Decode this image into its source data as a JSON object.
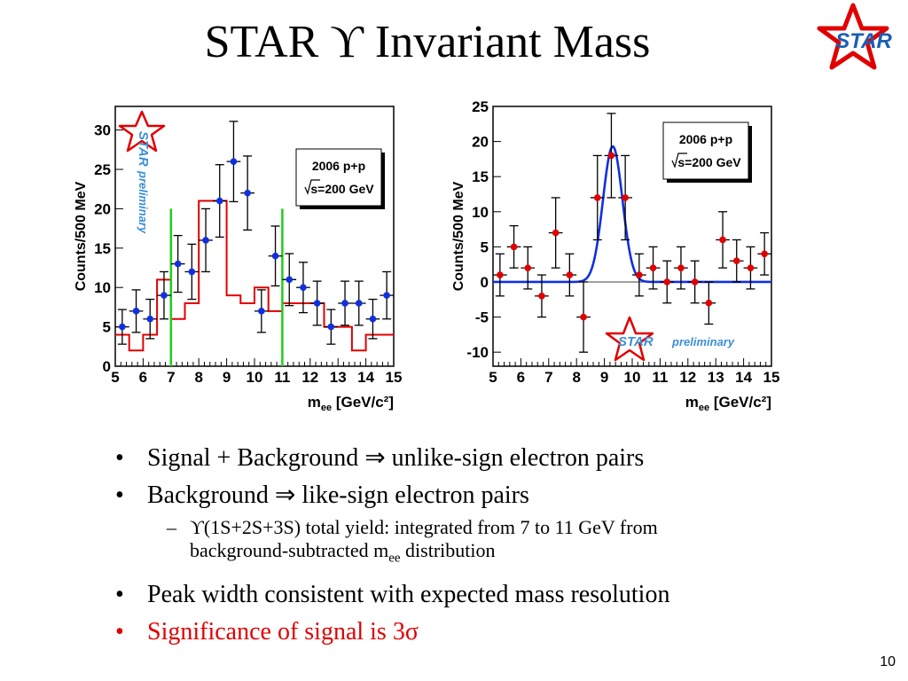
{
  "slide": {
    "title": "STAR ϒ Invariant Mass",
    "logo_text": "STAR",
    "page_number": "10"
  },
  "colors": {
    "red": "#e00000",
    "blue": "#1030e0",
    "green": "#22cc22",
    "logo_blue": "#1a5fb4",
    "wm_blue": "#3b8fd6"
  },
  "chart_data": [
    {
      "type": "scatter",
      "xlabel_main": "m",
      "xlabel_sub": "ee",
      "xlabel_unit": " [GeV/c²]",
      "ylabel": "Counts/500 MeV",
      "xlim": [
        5,
        15
      ],
      "ylim": [
        0,
        33
      ],
      "xticks": [
        "5",
        "6",
        "7",
        "8",
        "9",
        "10",
        "11",
        "12",
        "13",
        "14",
        "15"
      ],
      "yticks": [
        "0",
        "5",
        "10",
        "15",
        "20",
        "25",
        "30"
      ],
      "info_line1": "2006 p+p",
      "info_line2": "s=200 GeV",
      "watermark_star": "STAR",
      "watermark_text": "preliminary",
      "series": [
        {
          "style": "blue-points",
          "points": [
            [
              5.25,
              5
            ],
            [
              5.75,
              7
            ],
            [
              6.25,
              6
            ],
            [
              6.75,
              9
            ],
            [
              7.25,
              13
            ],
            [
              7.75,
              12
            ],
            [
              8.25,
              16
            ],
            [
              8.75,
              21
            ],
            [
              9.25,
              26
            ],
            [
              9.75,
              22
            ],
            [
              10.25,
              7
            ],
            [
              10.75,
              14
            ],
            [
              11.25,
              11
            ],
            [
              11.75,
              10
            ],
            [
              12.25,
              8
            ],
            [
              12.75,
              5
            ],
            [
              13.25,
              8
            ],
            [
              13.75,
              8
            ],
            [
              14.25,
              6
            ],
            [
              14.75,
              9
            ]
          ],
          "errors": [
            2.2,
            2.7,
            2.5,
            3,
            3.6,
            3.5,
            4,
            4.6,
            5.1,
            4.7,
            2.7,
            3.8,
            3.3,
            3.2,
            2.8,
            2.2,
            2.8,
            2.8,
            2.5,
            3
          ]
        },
        {
          "style": "red-histogram",
          "values": [
            4,
            2,
            4,
            11,
            6,
            8,
            21,
            21,
            9,
            8,
            10,
            7,
            8,
            8,
            8,
            5,
            5,
            2,
            4,
            4
          ]
        }
      ],
      "vertical_lines": [
        7,
        11
      ]
    },
    {
      "type": "scatter",
      "xlabel_main": "m",
      "xlabel_sub": "ee",
      "xlabel_unit": " [GeV/c²]",
      "ylabel": "Counts/500 MeV",
      "xlim": [
        5,
        15
      ],
      "ylim": [
        -12,
        25
      ],
      "xticks": [
        "5",
        "6",
        "7",
        "8",
        "9",
        "10",
        "11",
        "12",
        "13",
        "14",
        "15"
      ],
      "yticks": [
        "-10",
        "-5",
        "0",
        "5",
        "10",
        "15",
        "20",
        "25"
      ],
      "info_line1": "2006 p+p",
      "info_line2": "s=200 GeV",
      "watermark_star": "STAR",
      "watermark_text": "preliminary",
      "series": [
        {
          "style": "red-points",
          "points": [
            [
              5.25,
              1
            ],
            [
              5.75,
              5
            ],
            [
              6.25,
              2
            ],
            [
              6.75,
              -2
            ],
            [
              7.25,
              7
            ],
            [
              7.75,
              1
            ],
            [
              8.25,
              -5
            ],
            [
              8.75,
              12
            ],
            [
              9.25,
              18
            ],
            [
              9.75,
              12
            ],
            [
              10.25,
              1
            ],
            [
              10.75,
              2
            ],
            [
              11.25,
              0
            ],
            [
              11.75,
              2
            ],
            [
              12.25,
              0
            ],
            [
              12.75,
              -3
            ],
            [
              13.25,
              6
            ],
            [
              13.75,
              3
            ],
            [
              14.25,
              2
            ],
            [
              14.75,
              4
            ]
          ],
          "errors": [
            3,
            3,
            3,
            3,
            5,
            3,
            5,
            6,
            6,
            6,
            3,
            3,
            3,
            3,
            3,
            3,
            4,
            3,
            3,
            3
          ]
        },
        {
          "style": "blue-gaussian",
          "amplitude": 19.3,
          "mean": 9.3,
          "sigma": 0.35,
          "baseline": 0
        }
      ]
    }
  ],
  "bullets": [
    {
      "text": "Signal + Background ⇒ unlike-sign electron pairs",
      "color": "black"
    },
    {
      "text": "Background ⇒ like-sign electron pairs",
      "color": "black"
    }
  ],
  "subbullet": {
    "line1": "ϒ(1S+2S+3S) total yield: integrated from 7 to 11 GeV from",
    "line2_pre": "background-subtracted m",
    "line2_sub": "ee",
    "line2_post": " distribution"
  },
  "bullets2": [
    {
      "text": "Peak width consistent with expected mass resolution"
    },
    {
      "text": "Significance of signal is 3σ"
    }
  ]
}
